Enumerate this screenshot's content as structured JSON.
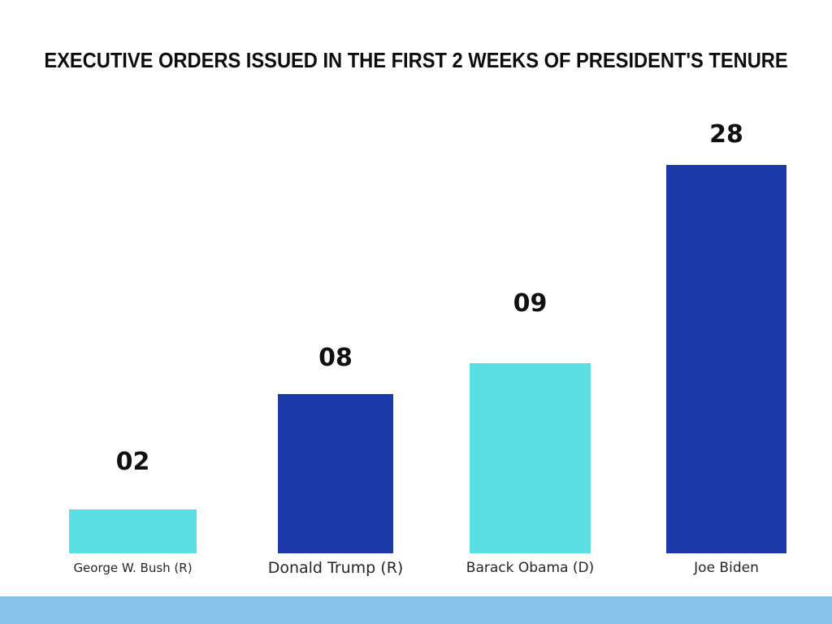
{
  "title": "EXECUTIVE ORDERS ISSUED IN THE FIRST 2 WEEKS OF PRESIDENT'S TENURE",
  "colors": {
    "bar_cyan": "#5adfe3",
    "bar_dark_blue": "#1c39aa",
    "footer_strip": "#85c3eb",
    "title_text": "#0d0d0d",
    "category_text": "#262626",
    "background": "#ffffff"
  },
  "chart_data": {
    "type": "bar",
    "title": "EXECUTIVE ORDERS ISSUED IN THE FIRST 2 WEEKS OF PRESIDENT'S TENURE",
    "categories": [
      "George W. Bush (R)",
      "Donald Trump (R)",
      "Barack Obama (D)",
      "Joe Biden"
    ],
    "values": [
      2,
      8,
      9,
      28
    ],
    "value_labels": [
      "02",
      "08",
      "09",
      "28"
    ],
    "bar_colors": [
      "#5adfe3",
      "#1c39aa",
      "#5adfe3",
      "#1c39aa"
    ],
    "xlabel": "",
    "ylabel": "",
    "axes_shown": false,
    "grid": false,
    "legend": "none",
    "value_label_position": "above-bar",
    "bars_drawn_to_scale": false
  }
}
